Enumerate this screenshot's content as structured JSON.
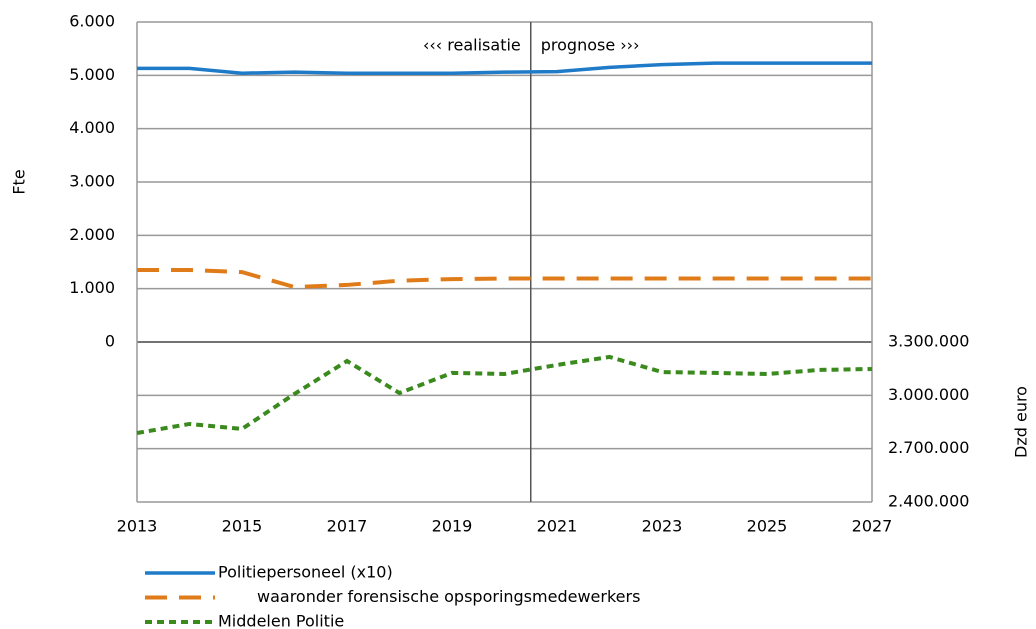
{
  "chart_data": {
    "type": "line",
    "y_label": "Fte",
    "y2_label": "Dzd euro",
    "annotations": {
      "left": "‹‹‹ realisatie",
      "right": "prognose ›››",
      "divider": 2020.5
    },
    "x": [
      2013,
      2014,
      2015,
      2016,
      2017,
      2018,
      2019,
      2020,
      2021,
      2022,
      2023,
      2024,
      2025,
      2026,
      2027
    ],
    "xlim": [
      2013,
      2027
    ],
    "xticks": [
      2013,
      2015,
      2017,
      2019,
      2021,
      2023,
      2025,
      2027
    ],
    "ylim": [
      -3000,
      6000
    ],
    "yticks": [
      {
        "value": 0,
        "label": "0"
      },
      {
        "value": 1000,
        "label": "1.000"
      },
      {
        "value": 2000,
        "label": "2.000"
      },
      {
        "value": 3000,
        "label": "3.000"
      },
      {
        "value": 4000,
        "label": "4.000"
      },
      {
        "value": 5000,
        "label": "5.000"
      },
      {
        "value": 6000,
        "label": "6.000"
      }
    ],
    "y2lim": [
      2400000,
      5100000
    ],
    "y2ticks": [
      {
        "value": 2400000,
        "label": "2.400.000"
      },
      {
        "value": 2700000,
        "label": "2.700.000"
      },
      {
        "value": 3000000,
        "label": "3.000.000"
      },
      {
        "value": 3300000,
        "label": "3.300.000"
      }
    ],
    "grid": true,
    "series": [
      {
        "name": "Politiepersoneel (x10)",
        "color": "#1f7bc8",
        "style": "solid",
        "values": [
          5130,
          5130,
          5040,
          5060,
          5040,
          5040,
          5040,
          5060,
          5070,
          5150,
          5200,
          5230,
          5230,
          5230,
          5230
        ]
      },
      {
        "name": "waaronder forensische opsporingsmedewerkers",
        "color": "#e07b1a",
        "style": "dashed",
        "values": [
          1350,
          1350,
          1310,
          1030,
          1070,
          1150,
          1180,
          1190,
          1190,
          1190,
          1190,
          1190,
          1190,
          1190,
          1190
        ]
      },
      {
        "name": "Middelen Politie",
        "color": "#3a8a1e",
        "style": "dotted",
        "axis": "y2",
        "values": [
          2788000,
          2839000,
          2811000,
          3008000,
          3193000,
          3013000,
          3126000,
          3120000,
          3171000,
          3216000,
          3131000,
          3126000,
          3120000,
          3143000,
          3148000
        ]
      }
    ]
  }
}
